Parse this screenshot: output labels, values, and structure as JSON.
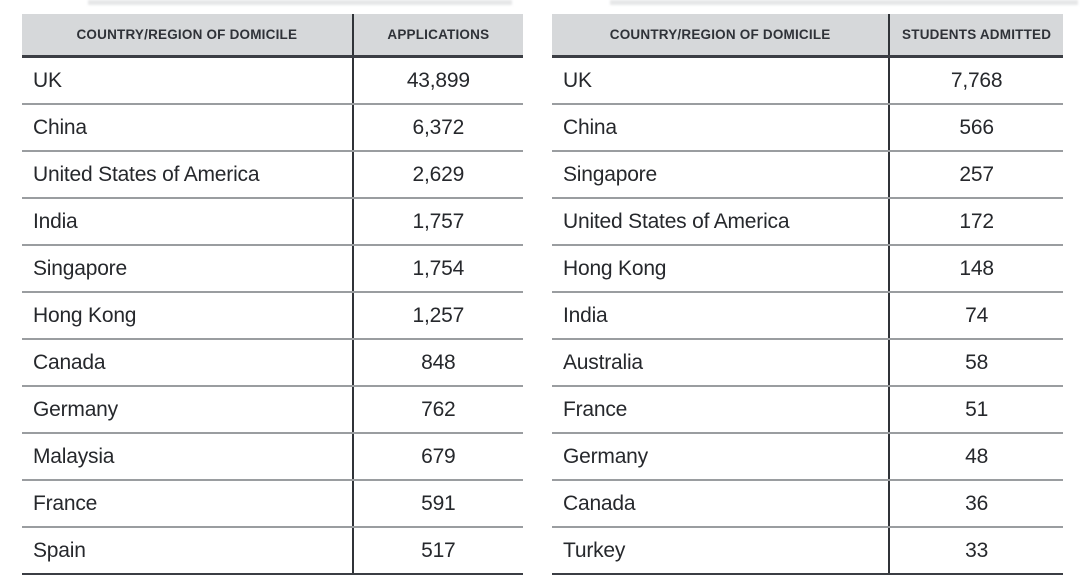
{
  "colors": {
    "header_bg": "#d6d8da",
    "header_border": "#3b3e44",
    "row_line": "#9a9da0",
    "column_divider": "#303338",
    "text": "#26282c",
    "header_text": "#2f3238",
    "background": "#ffffff"
  },
  "tables": [
    {
      "name": "applications",
      "columns": [
        "COUNTRY/REGION OF DOMICILE",
        "APPLICATIONS"
      ],
      "rows": [
        [
          "UK",
          "43,899"
        ],
        [
          "China",
          "6,372"
        ],
        [
          "United States of America",
          "2,629"
        ],
        [
          "India",
          "1,757"
        ],
        [
          "Singapore",
          "1,754"
        ],
        [
          "Hong Kong",
          "1,257"
        ],
        [
          "Canada",
          "848"
        ],
        [
          "Germany",
          "762"
        ],
        [
          "Malaysia",
          "679"
        ],
        [
          "France",
          "591"
        ],
        [
          "Spain",
          "517"
        ]
      ]
    },
    {
      "name": "students-admitted",
      "columns": [
        "COUNTRY/REGION OF DOMICILE",
        "STUDENTS ADMITTED"
      ],
      "rows": [
        [
          "UK",
          "7,768"
        ],
        [
          "China",
          "566"
        ],
        [
          "Singapore",
          "257"
        ],
        [
          "United States of America",
          "172"
        ],
        [
          "Hong Kong",
          "148"
        ],
        [
          "India",
          "74"
        ],
        [
          "Australia",
          "58"
        ],
        [
          "France",
          "51"
        ],
        [
          "Germany",
          "48"
        ],
        [
          "Canada",
          "36"
        ],
        [
          "Turkey",
          "33"
        ]
      ]
    }
  ]
}
